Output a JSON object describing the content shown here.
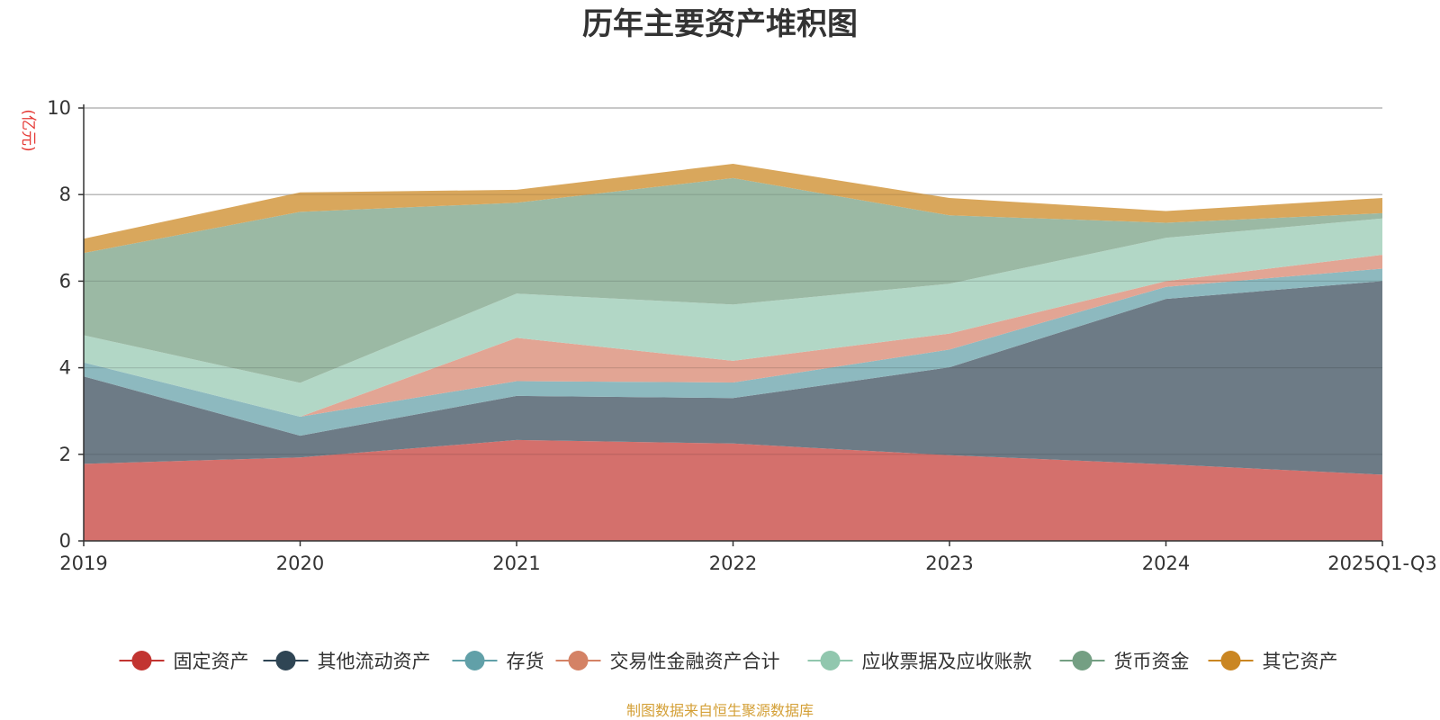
{
  "chart_data": {
    "type": "area",
    "stacked": true,
    "title": "历年主要资产堆积图",
    "unit_label": "(亿元)",
    "source_note": "制图数据来自恒生聚源数据库",
    "categories": [
      "2019",
      "2020",
      "2021",
      "2022",
      "2023",
      "2024",
      "2025Q1-Q3"
    ],
    "ylim": [
      0,
      10
    ],
    "yticks": [
      0,
      2,
      4,
      6,
      8,
      10
    ],
    "grid": true,
    "legend_position": "bottom",
    "series": [
      {
        "name": "固定资产",
        "color": "#c23531",
        "fill": "#d4706c",
        "values": [
          1.78,
          1.93,
          2.33,
          2.25,
          1.98,
          1.77,
          1.53
        ]
      },
      {
        "name": "其他流动资产",
        "color": "#2f4554",
        "fill": "#6d7b86",
        "values": [
          2.02,
          0.5,
          1.02,
          1.05,
          2.03,
          3.82,
          4.47
        ]
      },
      {
        "name": "存货",
        "color": "#61a0a8",
        "fill": "#8db9bf",
        "values": [
          0.32,
          0.44,
          0.34,
          0.36,
          0.41,
          0.28,
          0.29
        ]
      },
      {
        "name": "交易性金融资产合计",
        "color": "#d48265",
        "fill": "#e2a594",
        "values": [
          0.0,
          0.0,
          1.0,
          0.5,
          0.37,
          0.13,
          0.32
        ]
      },
      {
        "name": "应收票据及应收账款",
        "color": "#91c7ae",
        "fill": "#b2d7c6",
        "values": [
          0.63,
          0.78,
          1.02,
          1.3,
          1.15,
          1.0,
          0.84
        ]
      },
      {
        "name": "货币资金",
        "color": "#749f83",
        "fill": "#9bb9a4",
        "values": [
          1.9,
          3.95,
          2.1,
          2.92,
          1.58,
          0.35,
          0.12
        ]
      },
      {
        "name": "其它资产",
        "color": "#ca8622",
        "fill": "#d9a75c",
        "values": [
          0.33,
          0.45,
          0.3,
          0.33,
          0.4,
          0.27,
          0.35
        ]
      }
    ]
  }
}
